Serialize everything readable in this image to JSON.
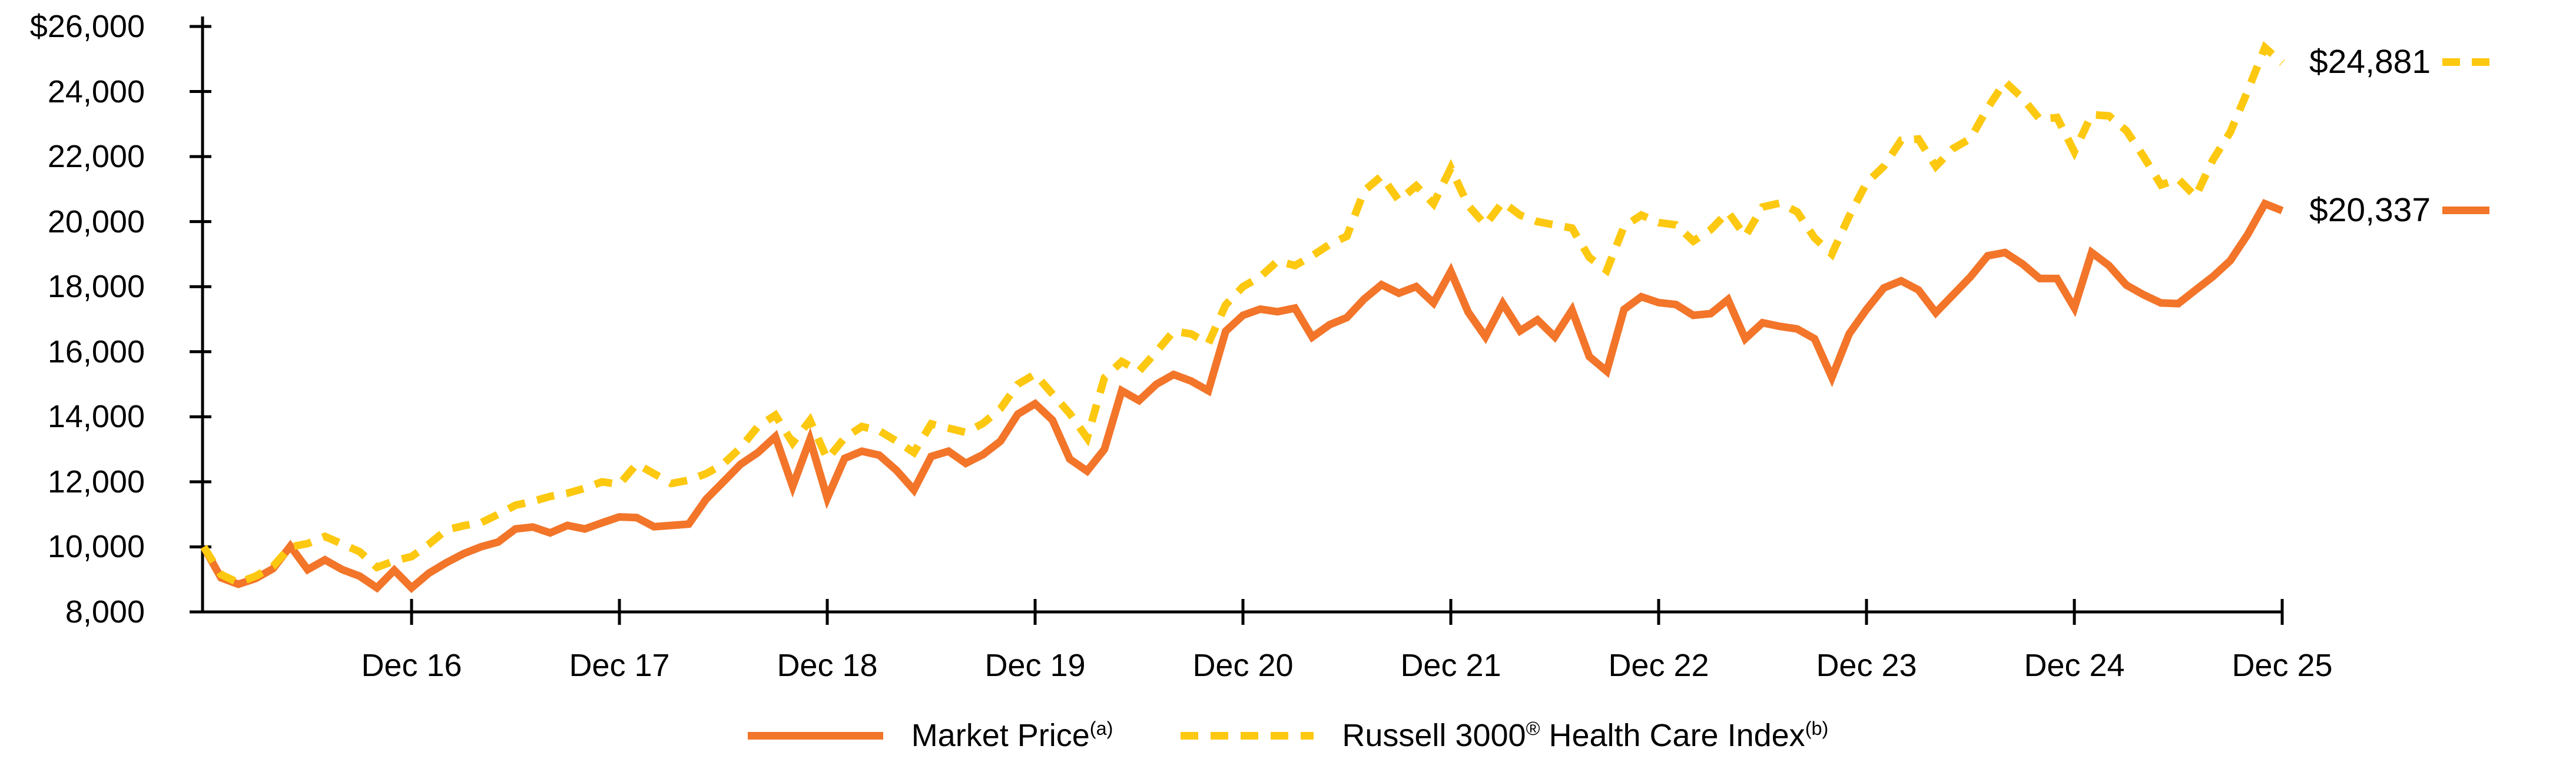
{
  "chart_data": {
    "type": "line",
    "title": "",
    "xlabel": "",
    "ylabel": "",
    "grid": false,
    "legend_position": "bottom-center",
    "ylim": [
      8000,
      26000
    ],
    "y_ticks": [
      "$26,000",
      "24,000",
      "22,000",
      "20,000",
      "18,000",
      "16,000",
      "14,000",
      "12,000",
      "10,000",
      "8,000"
    ],
    "y_tick_values": [
      26000,
      24000,
      22000,
      20000,
      18000,
      16000,
      14000,
      12000,
      10000,
      8000
    ],
    "x_ticks": [
      "Dec 16",
      "Dec 17",
      "Dec 18",
      "Dec 19",
      "Dec 20",
      "Dec 21",
      "Dec 22",
      "Dec 23",
      "Dec 24",
      "Dec 25"
    ],
    "x_unit": "months",
    "x_points_per_tick": 12,
    "series": [
      {
        "name": "Market Price",
        "footnote": "(a)",
        "style": "solid",
        "color": "#F2752A",
        "end_label": "$20,337",
        "end_value": 20337,
        "values": [
          10000,
          9050,
          8850,
          9030,
          9330,
          10020,
          9300,
          9600,
          9300,
          9100,
          8740,
          9280,
          8740,
          9190,
          9510,
          9790,
          10000,
          10150,
          10550,
          10610,
          10430,
          10660,
          10550,
          10740,
          10920,
          10900,
          10620,
          10660,
          10700,
          11460,
          12000,
          12540,
          12900,
          13390,
          11860,
          13300,
          11500,
          12720,
          12940,
          12820,
          12350,
          11750,
          12780,
          12940,
          12570,
          12840,
          13250,
          14080,
          14400,
          13900,
          12700,
          12330,
          13000,
          14800,
          14500,
          15000,
          15300,
          15100,
          14800,
          16630,
          17120,
          17310,
          17230,
          17340,
          16450,
          16830,
          17050,
          17620,
          18060,
          17800,
          18000,
          17500,
          18470,
          17220,
          16460,
          17480,
          16640,
          16980,
          16460,
          17280,
          15850,
          15400,
          17300,
          17690,
          17510,
          17450,
          17120,
          17170,
          17600,
          16400,
          16890,
          16780,
          16700,
          16400,
          15210,
          16550,
          17300,
          17960,
          18180,
          17900,
          17200,
          17750,
          18300,
          18950,
          19050,
          18700,
          18250,
          18250,
          17350,
          19050,
          18650,
          18050,
          17750,
          17500,
          17480,
          17900,
          18310,
          18800,
          19600,
          20550,
          20337
        ]
      },
      {
        "name": "Russell 3000 Health Care Index",
        "registered_mark_after": "Russell 3000",
        "footnote": "(b)",
        "style": "dashed",
        "color": "#FDC810",
        "end_label": "$24,881",
        "end_value": 24881,
        "values": [
          10000,
          9150,
          8900,
          9100,
          9400,
          10000,
          10100,
          10320,
          10090,
          9850,
          9370,
          9570,
          9700,
          10080,
          10520,
          10650,
          10740,
          11000,
          11280,
          11400,
          11550,
          11650,
          11800,
          12000,
          11920,
          12550,
          12250,
          11950,
          12050,
          12250,
          12550,
          13050,
          13700,
          14050,
          13200,
          13890,
          12700,
          13350,
          13700,
          13570,
          13250,
          12900,
          13780,
          13650,
          13520,
          13800,
          14250,
          15000,
          15310,
          14700,
          14100,
          13350,
          15200,
          15700,
          15400,
          16000,
          16630,
          16550,
          16250,
          17440,
          18000,
          18300,
          18790,
          18650,
          18950,
          19300,
          19550,
          20950,
          21400,
          20650,
          21100,
          20550,
          21650,
          20500,
          19900,
          20600,
          20200,
          20000,
          19900,
          19800,
          18900,
          18500,
          19850,
          20200,
          19970,
          19900,
          19400,
          19750,
          20300,
          19550,
          20450,
          20570,
          20300,
          19500,
          19000,
          20170,
          21190,
          21700,
          22500,
          22540,
          21700,
          22250,
          22550,
          23500,
          24300,
          23800,
          23150,
          23200,
          22150,
          23290,
          23250,
          22800,
          22000,
          21130,
          21310,
          20770,
          21900,
          22750,
          24010,
          25350,
          24881
        ]
      }
    ],
    "legend": {
      "items": [
        {
          "swatch": "solid",
          "parts": [
            {
              "t": "Market Price"
            },
            {
              "t": "(a)",
              "sup": true
            }
          ]
        },
        {
          "swatch": "dashed",
          "parts": [
            {
              "t": "Russell 3000"
            },
            {
              "t": "®",
              "sup": true
            },
            {
              "t": " Health Care Index"
            },
            {
              "t": "(b)",
              "sup": true
            }
          ]
        }
      ]
    }
  }
}
